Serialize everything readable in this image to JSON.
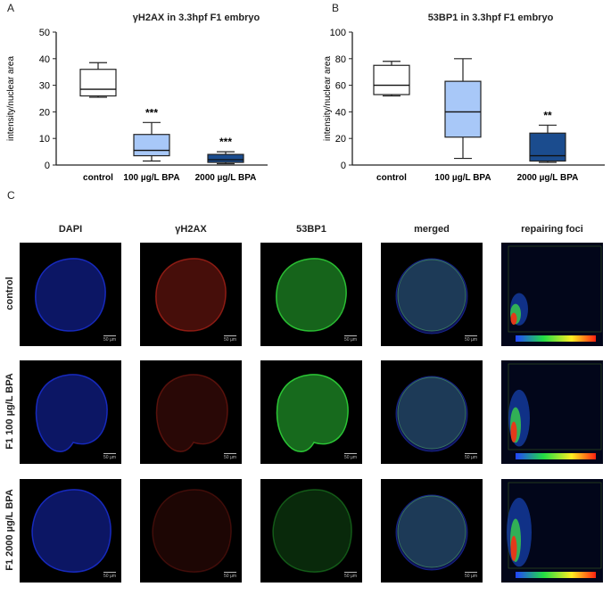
{
  "panels": {
    "a": {
      "letter": "A",
      "title": "γH2AX in 3.3hpf F1 embryo"
    },
    "b": {
      "letter": "B",
      "title": "53BP1 in 3.3hpf F1 embryo"
    },
    "c": {
      "letter": "C"
    }
  },
  "chart_data": [
    {
      "type": "box",
      "title": "γH2AX in 3.3hpf F1 embryo",
      "ylabel": "intensity/nuclear area",
      "ylim": [
        0,
        50
      ],
      "yticks": [
        "0",
        "10",
        "20",
        "30",
        "40",
        "50"
      ],
      "categories": [
        "control",
        "100 µg/L BPA",
        "2000 µg/L BPA"
      ],
      "boxes": [
        {
          "category": "control",
          "min": 25.5,
          "q1": 26,
          "median": 28.5,
          "q3": 36,
          "max": 38.5,
          "color": "#ffffff",
          "annotation": ""
        },
        {
          "category": "100 µg/L BPA",
          "min": 1.5,
          "q1": 3.5,
          "median": 5.5,
          "q3": 11.5,
          "max": 16,
          "color": "#a8c8f8",
          "annotation": "***"
        },
        {
          "category": "2000 µg/L BPA",
          "min": 0.5,
          "q1": 1,
          "median": 2,
          "q3": 4,
          "max": 5,
          "color": "#1b4c8e",
          "annotation": "***"
        }
      ]
    },
    {
      "type": "box",
      "title": "53BP1 in 3.3hpf F1 embryo",
      "ylabel": "intensity/nuclear area",
      "ylim": [
        0,
        100
      ],
      "yticks": [
        "0",
        "20",
        "40",
        "60",
        "80",
        "100"
      ],
      "categories": [
        "control",
        "100 µg/L BPA",
        "2000 µg/L BPA"
      ],
      "boxes": [
        {
          "category": "control",
          "min": 52,
          "q1": 53,
          "median": 60,
          "q3": 75,
          "max": 78,
          "color": "#ffffff",
          "annotation": ""
        },
        {
          "category": "100 µg/L BPA",
          "min": 5,
          "q1": 21,
          "median": 40,
          "q3": 63,
          "max": 80,
          "color": "#a8c8f8",
          "annotation": ""
        },
        {
          "category": "2000 µg/L BPA",
          "min": 2,
          "q1": 3,
          "median": 7,
          "q3": 24,
          "max": 30,
          "color": "#1b4c8e",
          "annotation": "**"
        }
      ]
    }
  ],
  "grid": {
    "columns": [
      "DAPI",
      "γH2AX",
      "53BP1",
      "merged",
      "repairing foci"
    ],
    "rows": [
      "control",
      "F1 100  µg/L BPA",
      "F1 2000  µg/L BPA"
    ],
    "scale_bar": "50 µm",
    "stain_colors": {
      "DAPI": "#1a2fd6",
      "γH2AX": "#d42a1e",
      "53BP1": "#2fd63a"
    }
  }
}
